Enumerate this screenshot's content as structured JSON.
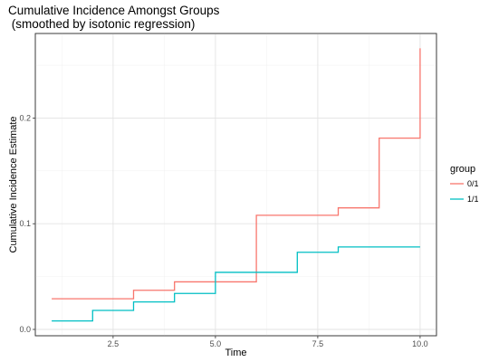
{
  "chart_data": {
    "type": "line",
    "step": true,
    "title_lines": [
      "Cumulative Incidence Amongst Groups",
      " (smoothed by isotonic regression)"
    ],
    "xlabel": "Time",
    "ylabel": "Cumulative Incidence Estimate",
    "xlim": [
      0.6,
      10.4
    ],
    "ylim": [
      -0.006,
      0.28
    ],
    "x_ticks": [
      2.5,
      5.0,
      7.5,
      10.0
    ],
    "x_tick_labels": [
      "2.5",
      "5.0",
      "7.5",
      "10.0"
    ],
    "y_ticks": [
      0.0,
      0.1,
      0.2
    ],
    "y_tick_labels": [
      "0.0",
      "0.1",
      "0.2"
    ],
    "grid": true,
    "legend": {
      "title": "group",
      "position": "right"
    },
    "series": [
      {
        "name": "0/1",
        "color": "#F8766D",
        "x": [
          1,
          2,
          3,
          4,
          5,
          6,
          7,
          8,
          9,
          10
        ],
        "y": [
          0.029,
          0.029,
          0.037,
          0.045,
          0.045,
          0.108,
          0.108,
          0.115,
          0.181,
          0.266
        ]
      },
      {
        "name": "1/1",
        "color": "#00BFC4",
        "x": [
          1,
          2,
          3,
          4,
          5,
          6,
          7,
          8,
          9,
          10
        ],
        "y": [
          0.008,
          0.018,
          0.026,
          0.034,
          0.054,
          0.054,
          0.073,
          0.078,
          0.078,
          0.078
        ]
      }
    ]
  }
}
